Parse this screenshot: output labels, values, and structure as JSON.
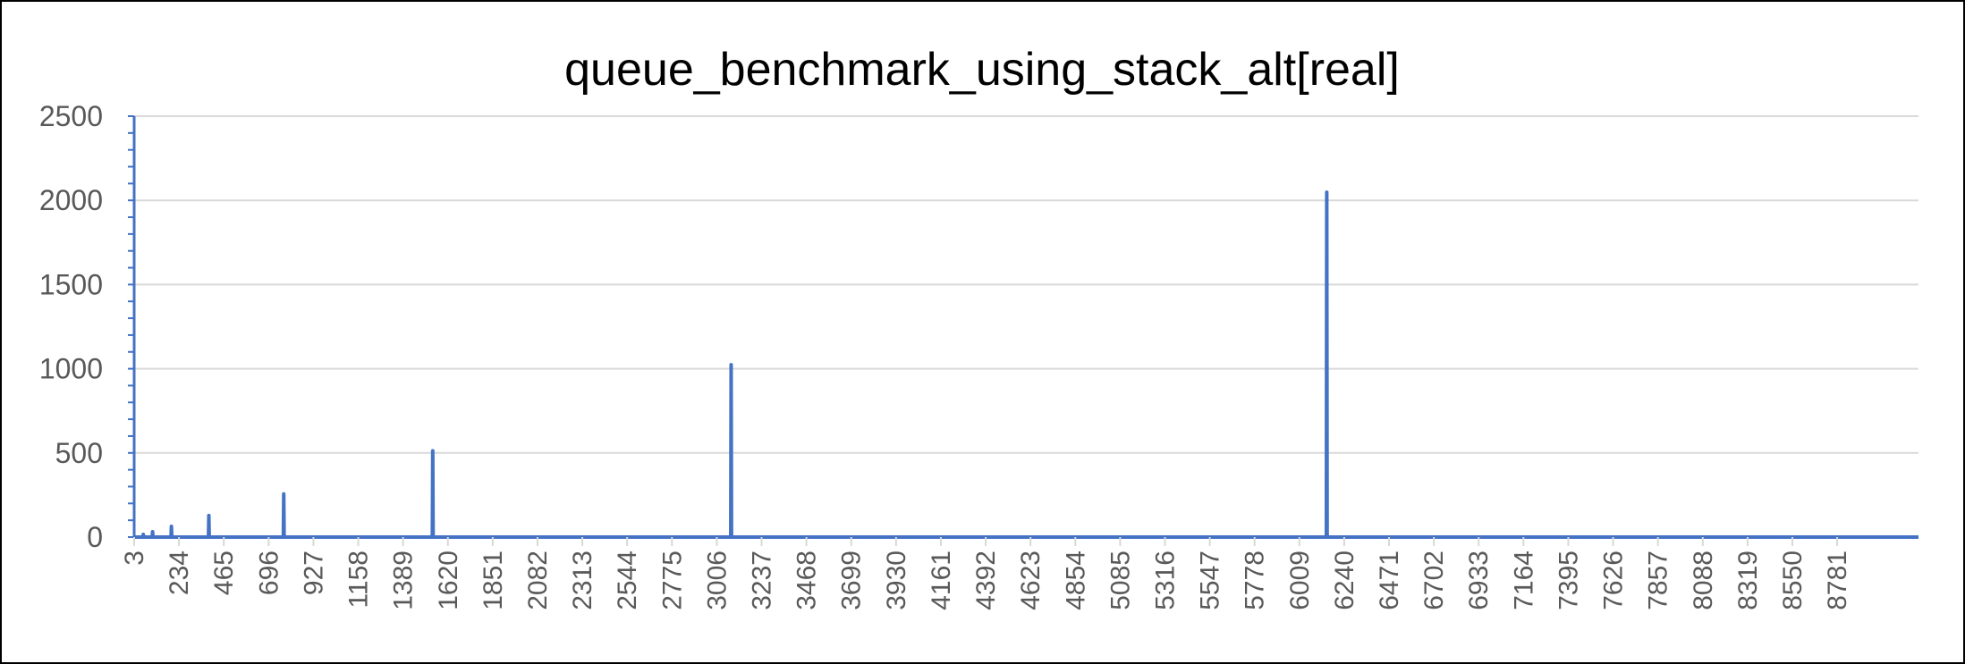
{
  "chart_data": {
    "type": "line",
    "title": "queue_benchmark_using_stack_alt[real]",
    "xlabel": "",
    "ylabel": "",
    "ylim": [
      0,
      2500
    ],
    "yticks": [
      0,
      500,
      1000,
      1500,
      2000,
      2500
    ],
    "xlim": [
      3,
      9200
    ],
    "xticks": [
      "3",
      "234",
      "465",
      "696",
      "927",
      "1158",
      "1389",
      "1620",
      "1851",
      "2082",
      "2313",
      "2544",
      "2775",
      "3006",
      "3237",
      "3468",
      "3699",
      "3930",
      "4161",
      "4392",
      "4623",
      "4854",
      "5085",
      "5316",
      "5547",
      "5778",
      "6009",
      "6240",
      "6471",
      "6702",
      "6933",
      "7164",
      "7395",
      "7626",
      "7857",
      "8088",
      "8319",
      "8550",
      "8781"
    ],
    "grid": true,
    "legend": "none",
    "colors": {
      "series": "#4472C4",
      "grid": "#D9D9D9",
      "axis": "#4472C4"
    },
    "series": [
      {
        "name": "",
        "points": [
          [
            3,
            0
          ],
          [
            48,
            0
          ],
          [
            50,
            16
          ],
          [
            52,
            0
          ],
          [
            96,
            0
          ],
          [
            98,
            32
          ],
          [
            100,
            0
          ],
          [
            193,
            0
          ],
          [
            195,
            64
          ],
          [
            197,
            0
          ],
          [
            386,
            0
          ],
          [
            388,
            128
          ],
          [
            390,
            0
          ],
          [
            772,
            0
          ],
          [
            774,
            256
          ],
          [
            776,
            0
          ],
          [
            1540,
            0
          ],
          [
            1542,
            512
          ],
          [
            1544,
            0
          ],
          [
            3078,
            0
          ],
          [
            3080,
            1024
          ],
          [
            3082,
            0
          ],
          [
            6148,
            0
          ],
          [
            6150,
            2048
          ],
          [
            6152,
            0
          ],
          [
            9200,
            0
          ]
        ]
      }
    ]
  }
}
